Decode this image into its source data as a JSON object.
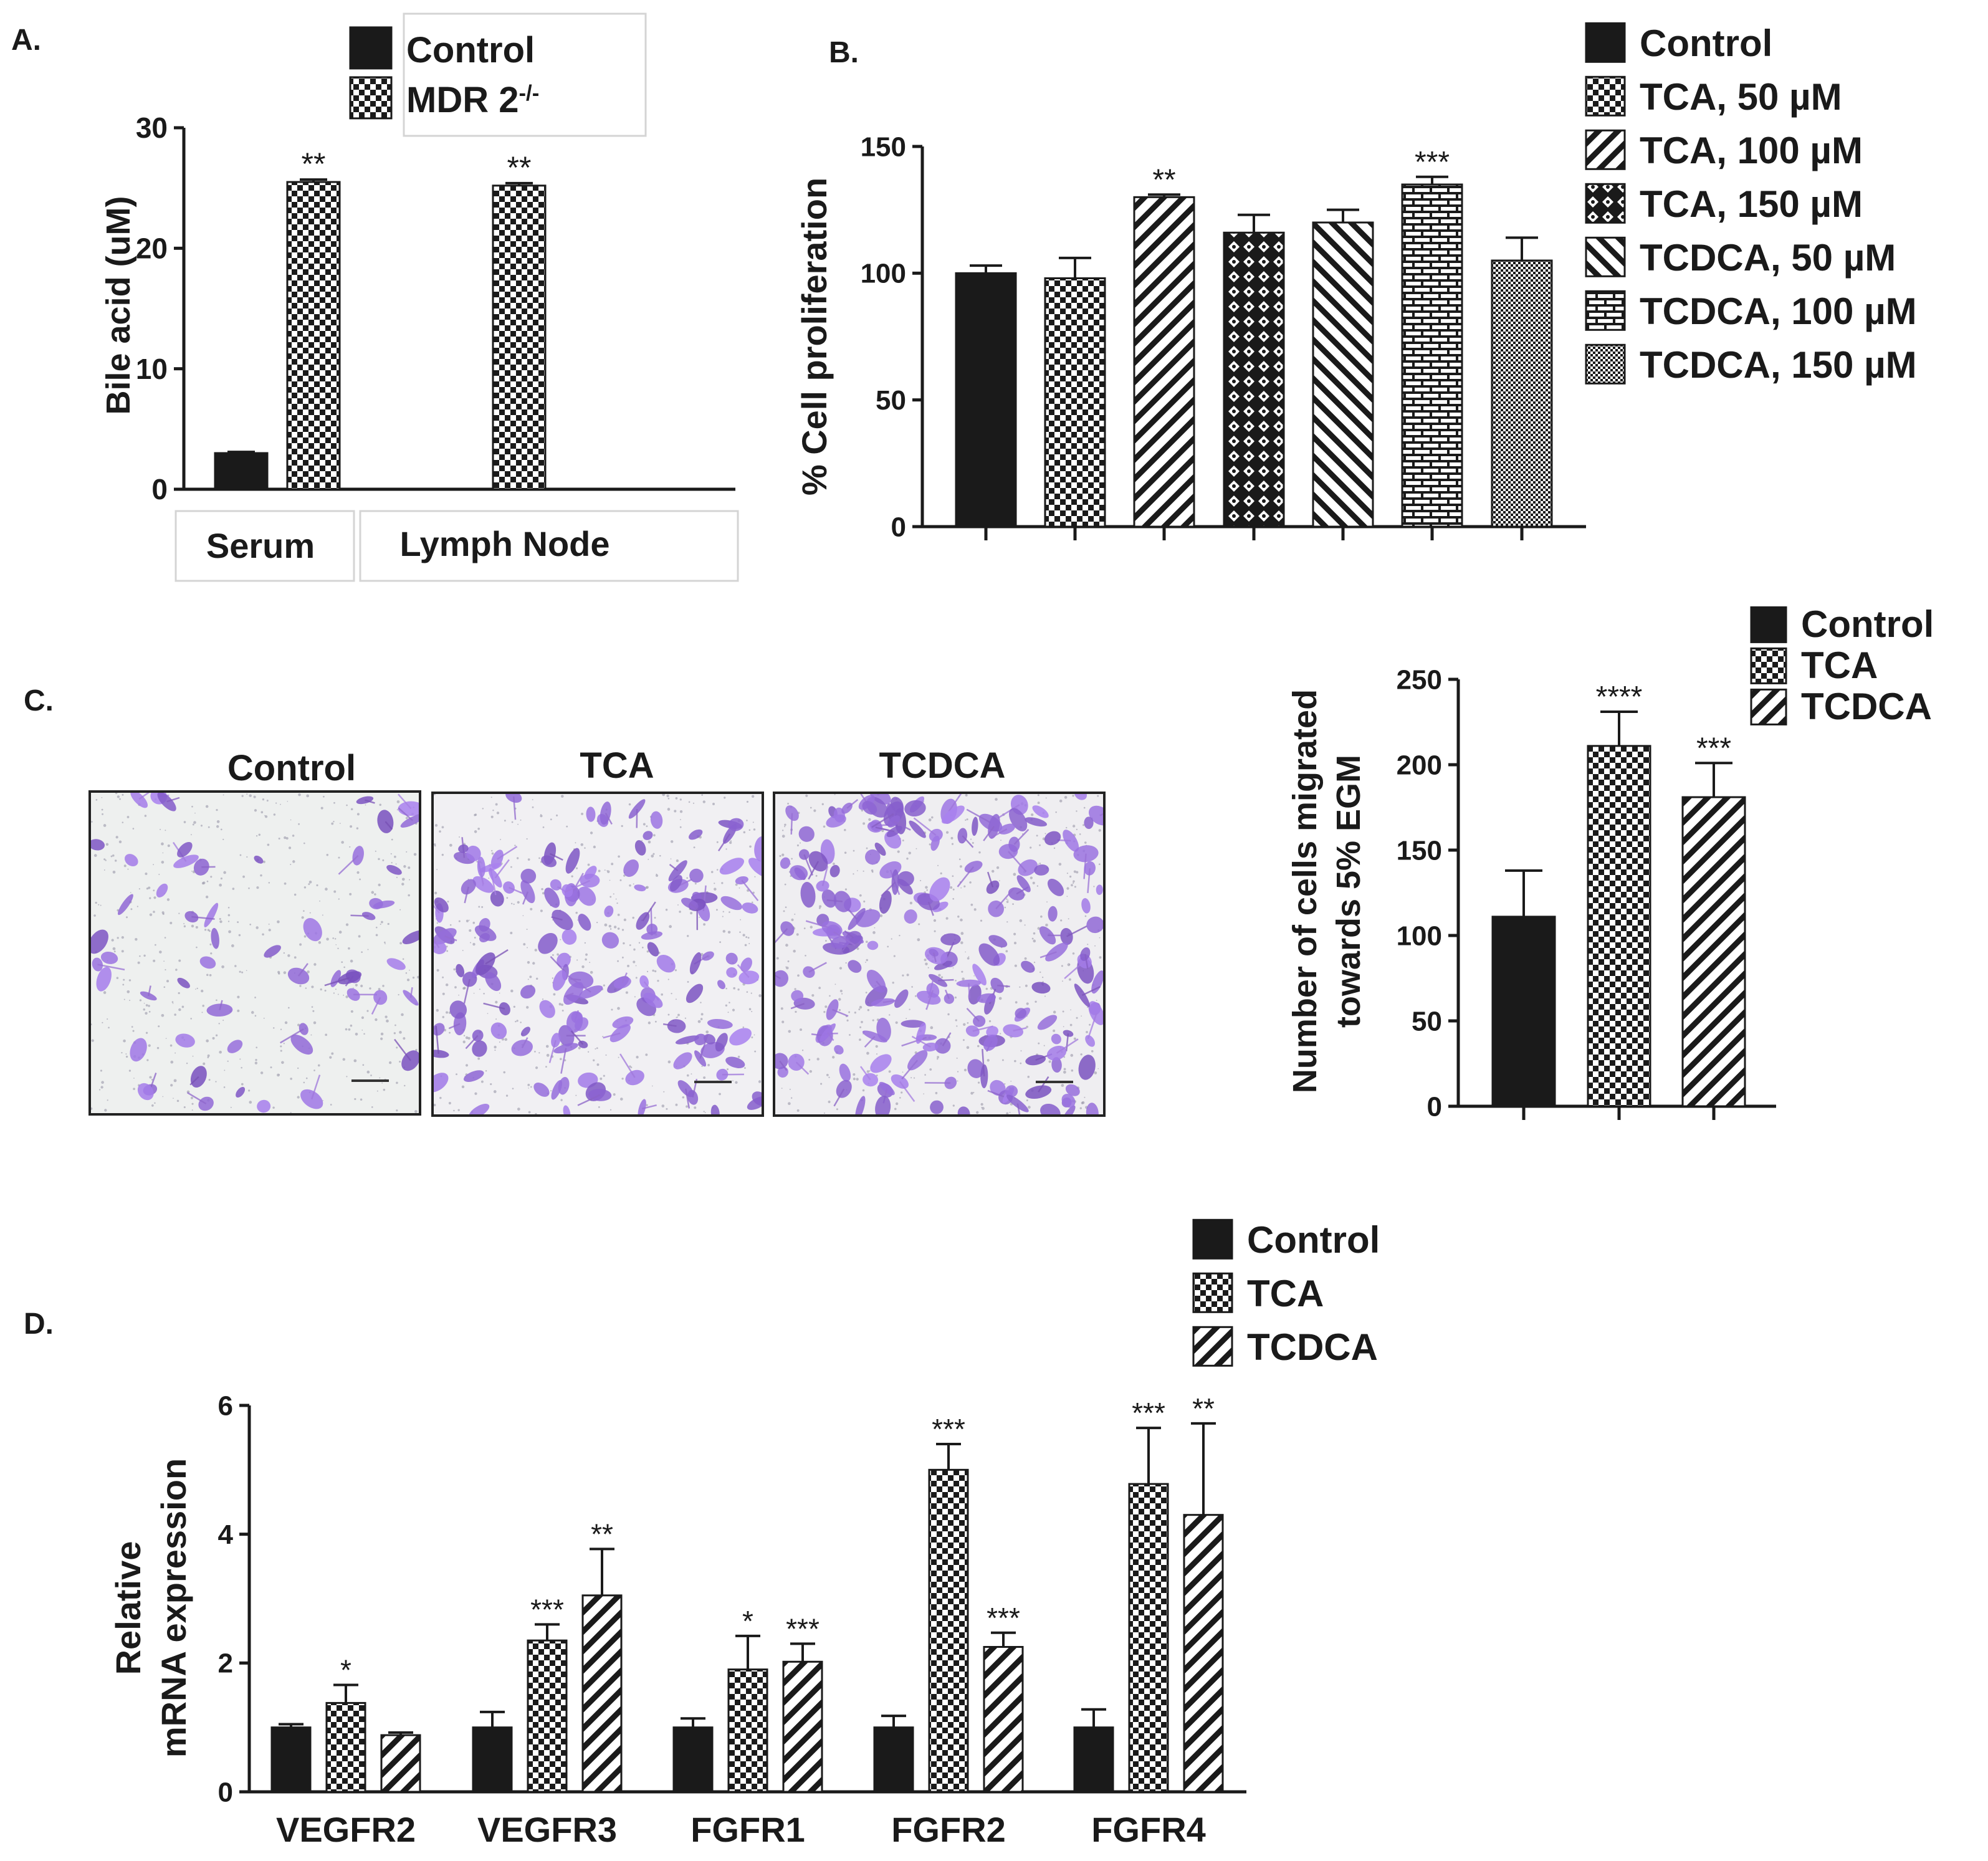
{
  "chart_data": [
    {
      "panel": "A.",
      "type": "bar",
      "categories": [
        "Serum",
        "Lymph Node"
      ],
      "series": [
        {
          "name": "Control",
          "pattern": "solid",
          "values": [
            3.0,
            null
          ]
        },
        {
          "name": "MDR 2",
          "name_sup": "-/-",
          "pattern": "checker",
          "values": [
            25.5,
            25.2
          ]
        }
      ],
      "errors": [
        [
          0.1,
          null
        ],
        [
          0.2,
          0.2
        ]
      ],
      "significance": [
        [
          null,
          null
        ],
        [
          "**",
          "**"
        ]
      ],
      "ylabel": "Bile acid (uM)",
      "ylim": [
        0,
        30
      ],
      "yticks": [
        0,
        10,
        20,
        30
      ],
      "legend": "top-right"
    },
    {
      "panel": "B.",
      "type": "bar",
      "categories": [
        "Control",
        "TCA, 50 µM",
        "TCA, 100 µM",
        "TCA, 150 µM",
        "TCDCA, 50 µM",
        "TCDCA, 100 µM",
        "TCDCA, 150 µM"
      ],
      "values": [
        100,
        98,
        130,
        116,
        120,
        135,
        105
      ],
      "errors": [
        3,
        8,
        1,
        7,
        5,
        3,
        9
      ],
      "significance": [
        null,
        null,
        "**",
        null,
        null,
        "***",
        null
      ],
      "patterns": [
        "solid",
        "checker",
        "diag",
        "diamond",
        "diag-back",
        "brick",
        "fine"
      ],
      "ylabel": "% Cell proliferation",
      "ylim": [
        0,
        150
      ],
      "yticks": [
        0,
        50,
        100,
        150
      ],
      "legend": "right"
    },
    {
      "panel": "C.",
      "type": "bar",
      "categories": [
        "Control",
        "TCA",
        "TCDCA"
      ],
      "values": [
        111,
        211,
        181
      ],
      "errors": [
        27,
        20,
        20
      ],
      "significance": [
        null,
        "****",
        "***"
      ],
      "patterns": [
        "solid",
        "checker",
        "diag"
      ],
      "ylabel_lines": [
        "Number of cells migrated",
        "towards 5% EGM"
      ],
      "ylim": [
        0,
        250
      ],
      "yticks": [
        0,
        50,
        100,
        150,
        200,
        250
      ],
      "legend": "top-right",
      "image_titles": [
        "Control",
        "TCA",
        "TCDCA"
      ]
    },
    {
      "panel": "D.",
      "type": "bar",
      "categories": [
        "VEGFR2",
        "VEGFR3",
        "FGFR1",
        "FGFR2",
        "FGFR4"
      ],
      "series": [
        {
          "name": "Control",
          "pattern": "solid",
          "values": [
            1.0,
            1.0,
            1.0,
            1.0,
            1.0
          ]
        },
        {
          "name": "TCA",
          "pattern": "checker",
          "values": [
            1.38,
            2.35,
            1.9,
            5.0,
            4.78
          ]
        },
        {
          "name": "TCDCA",
          "pattern": "diag",
          "values": [
            0.88,
            3.05,
            2.02,
            2.25,
            4.3
          ]
        }
      ],
      "errors": [
        [
          0.05,
          0.24,
          0.14,
          0.18,
          0.28
        ],
        [
          0.28,
          0.25,
          0.52,
          0.4,
          0.87
        ],
        [
          0.04,
          0.72,
          0.28,
          0.22,
          1.42
        ]
      ],
      "significance": [
        [
          null,
          null,
          null,
          null,
          null
        ],
        [
          "*",
          "***",
          "*",
          "***",
          "***"
        ],
        [
          null,
          "**",
          "***",
          "***",
          "**"
        ]
      ],
      "ylabel_lines": [
        "Relative",
        "mRNA expression"
      ],
      "ylim": [
        0,
        6
      ],
      "yticks": [
        0,
        2,
        4,
        6
      ],
      "legend": "top"
    }
  ]
}
